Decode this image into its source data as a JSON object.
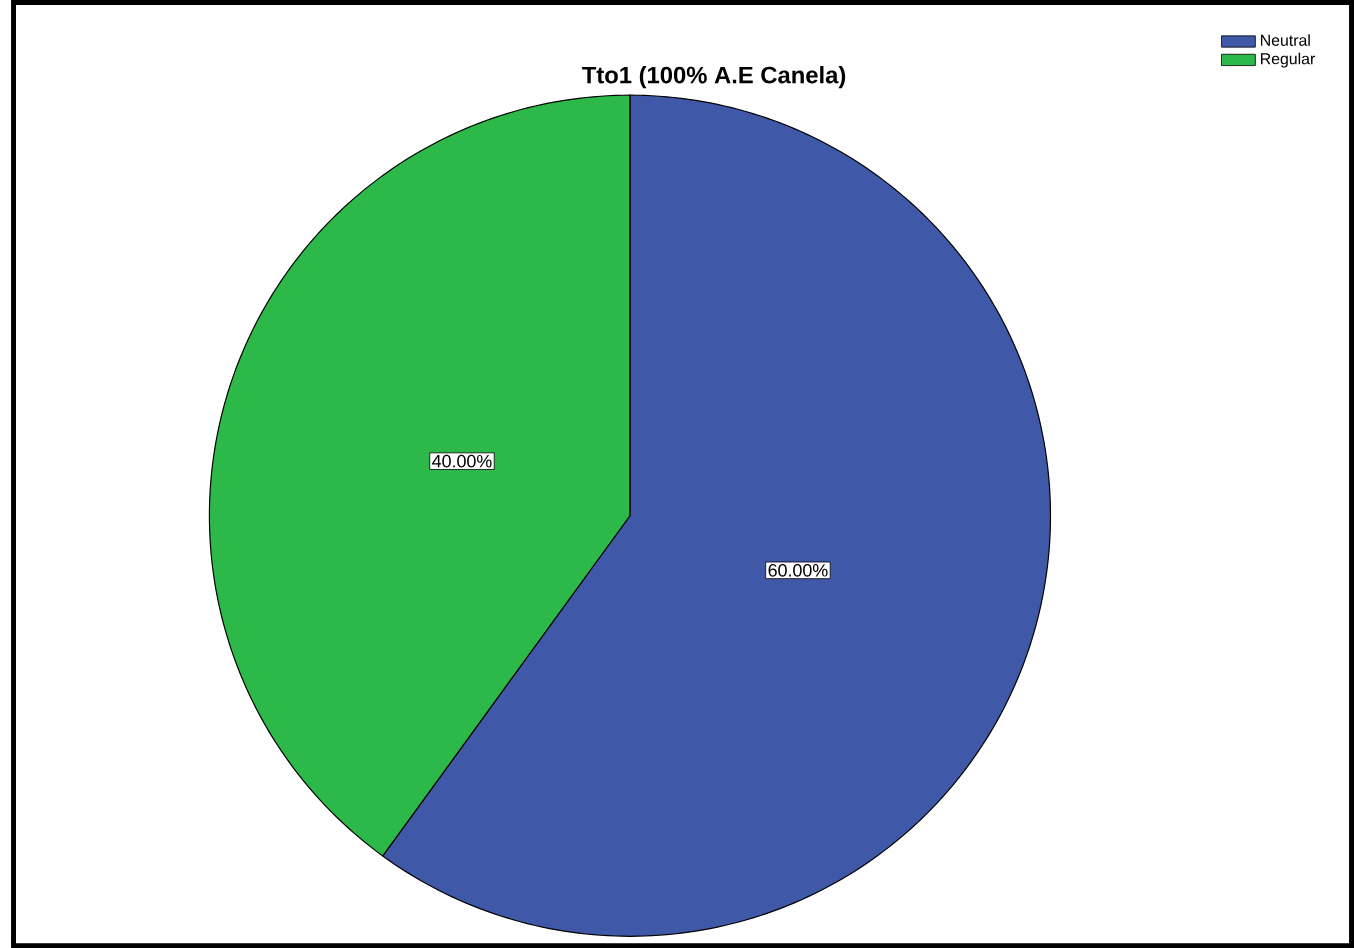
{
  "chart_data": {
    "type": "pie",
    "title": "Tto1 (100% A.E Canela)",
    "categories": [
      "Neutral",
      "Regular"
    ],
    "values": [
      60,
      40
    ],
    "colors": [
      "#3f58a8",
      "#2db84a"
    ],
    "value_labels": [
      "60.00%",
      "40.00%"
    ],
    "legend": "top right"
  }
}
